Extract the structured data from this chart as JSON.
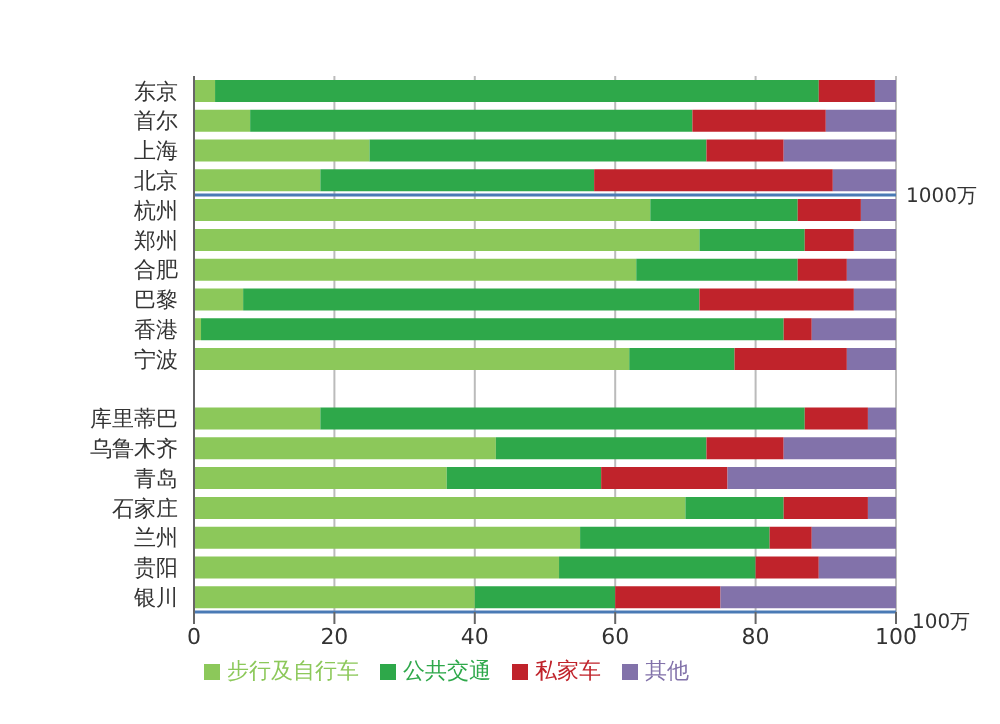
{
  "chart_data": {
    "type": "bar",
    "orientation": "horizontal",
    "stacked": true,
    "categories": [
      "东京",
      "首尔",
      "上海",
      "北京",
      "杭州",
      "郑州",
      "合肥",
      "巴黎",
      "香港",
      "宁波",
      null,
      "库里蒂巴",
      "乌鲁木齐",
      "青岛",
      "石家庄",
      "兰州",
      "贵阳",
      "银川"
    ],
    "series": [
      {
        "name": "步行及自行车",
        "color": "#8cc85a",
        "values": [
          3,
          8,
          25,
          18,
          65,
          72,
          63,
          7,
          1,
          62,
          null,
          18,
          43,
          36,
          70,
          55,
          52,
          40
        ]
      },
      {
        "name": "公共交通",
        "color": "#2ea84a",
        "values": [
          86,
          63,
          48,
          39,
          21,
          15,
          23,
          65,
          83,
          15,
          null,
          69,
          30,
          22,
          14,
          27,
          28,
          20
        ]
      },
      {
        "name": "私家车",
        "color": "#c0232b",
        "values": [
          8,
          19,
          11,
          34,
          9,
          7,
          7,
          22,
          4,
          16,
          null,
          9,
          11,
          18,
          12,
          6,
          9,
          15
        ]
      },
      {
        "name": "其他",
        "color": "#8272aa",
        "values": [
          3,
          10,
          16,
          9,
          5,
          6,
          7,
          6,
          12,
          7,
          null,
          4,
          16,
          24,
          4,
          12,
          11,
          25
        ]
      }
    ],
    "xlim": [
      0,
      100
    ],
    "xticks": [
      0,
      20,
      40,
      60,
      80,
      100
    ],
    "grid": "x",
    "legend": "bottom",
    "ref_lines": [
      {
        "axis": "y",
        "value": "北京",
        "label": "1000万",
        "color": "#4a7ab5"
      }
    ],
    "annotations": [
      "100万"
    ]
  }
}
